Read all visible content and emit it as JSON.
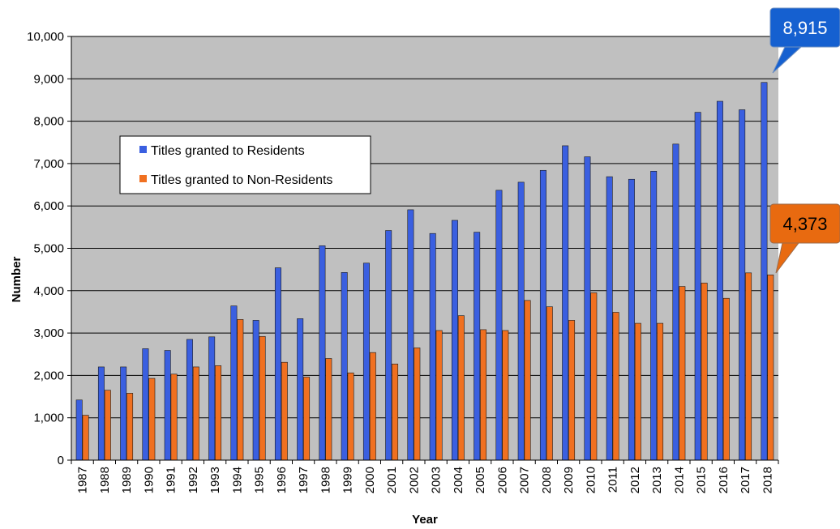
{
  "chart_data": {
    "type": "bar",
    "xlabel": "Year",
    "ylabel": "Number",
    "ylim": [
      0,
      10000
    ],
    "yticks": [
      "0",
      "1,000",
      "2,000",
      "3,000",
      "4,000",
      "5,000",
      "6,000",
      "7,000",
      "8,000",
      "9,000",
      "10,000"
    ],
    "grid": true,
    "legend_position": "upper-left",
    "categories": [
      "1987",
      "1988",
      "1989",
      "1990",
      "1991",
      "1992",
      "1993",
      "1994",
      "1995",
      "1996",
      "1997",
      "1998",
      "1999",
      "2000",
      "2001",
      "2002",
      "2003",
      "2004",
      "2005",
      "2006",
      "2007",
      "2008",
      "2009",
      "2010",
      "2011",
      "2012",
      "2013",
      "2014",
      "2015",
      "2016",
      "2017",
      "2018"
    ],
    "series": [
      {
        "name": "Titles granted to Residents",
        "color": "#3a5fe0",
        "values": [
          1420,
          2200,
          2200,
          2630,
          2590,
          2850,
          2910,
          3640,
          3300,
          4540,
          3340,
          5060,
          4430,
          4650,
          5420,
          5910,
          5350,
          5660,
          5380,
          6370,
          6560,
          6840,
          7420,
          7160,
          6690,
          6630,
          6820,
          7460,
          8210,
          8470,
          8270,
          8915
        ]
      },
      {
        "name": "Titles granted to Non-Residents",
        "color": "#f07020",
        "values": [
          1060,
          1650,
          1580,
          1930,
          2030,
          2200,
          2230,
          3320,
          2920,
          2310,
          1960,
          2400,
          2060,
          2540,
          2270,
          2650,
          3060,
          3410,
          3080,
          3060,
          3770,
          3620,
          3300,
          3950,
          3490,
          3230,
          3230,
          4100,
          4180,
          3820,
          4420,
          4373
        ]
      }
    ],
    "annotations": [
      {
        "series": 0,
        "category": "2018",
        "text": "8,915"
      },
      {
        "series": 1,
        "category": "2018",
        "text": "4,373"
      }
    ]
  }
}
